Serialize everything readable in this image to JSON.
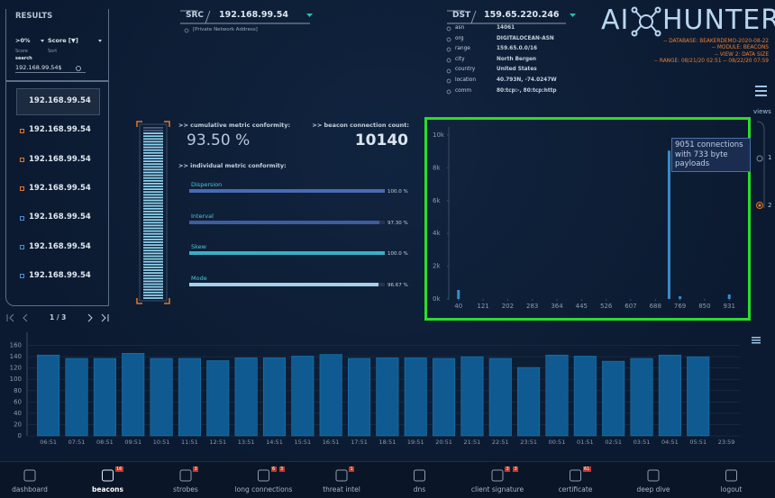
{
  "results": {
    "title": "RESULTS",
    "filter": ">0%",
    "sort": "Score [▼]",
    "filter_label": "Score",
    "sort_label": "Sort",
    "search_label": "search",
    "search": "192.168.99.54$",
    "items": [
      "192.168.99.54",
      "192.168.99.54",
      "192.168.99.54",
      "192.168.99.54",
      "192.168.99.54",
      "192.168.99.54",
      "192.168.99.54"
    ],
    "page": "1 / 3"
  },
  "src": {
    "label": "SRC",
    "ip": "192.168.99.54",
    "note": "[Private Network Address]"
  },
  "dst": {
    "label": "DST",
    "ip": "159.65.220.246",
    "fields": [
      {
        "key": "asn",
        "value": "14061"
      },
      {
        "key": "org",
        "value": "DIGITALOCEAN-ASN"
      },
      {
        "key": "range",
        "value": "159.65.0.0/16"
      },
      {
        "key": "city",
        "value": "North Bergen"
      },
      {
        "key": "country",
        "value": "United States"
      },
      {
        "key": "location",
        "value": "40.793N, -74.0247W"
      },
      {
        "key": "comm",
        "value": "80:tcp:-, 80:tcp:http"
      }
    ]
  },
  "logo": {
    "left": "AI",
    "right": "HUNTER"
  },
  "info": [
    "-- DATABASE: BEAKERDEMO-2020-08-22",
    "-- MODULE: BEACONS",
    "-- VIEW 2: DATA SIZE",
    "-- RANGE: 08/21/20 02:51 -- 08/22/20 07:59"
  ],
  "metrics": {
    "cumulative_label": ">> cumulative metric conformity:",
    "cumulative": "93.50 %",
    "count_label": ">> beacon connection count:",
    "count": "10140",
    "individual_label": ">> individual metric conformity:",
    "items": [
      {
        "name": "Dispersion",
        "value": 100,
        "label": "100.0 %",
        "color": "#4a6bb3"
      },
      {
        "name": "Interval",
        "value": 97.3,
        "label": "97.30 %",
        "color": "#3e5d9f"
      },
      {
        "name": "Skew",
        "value": 100,
        "label": "100.0 %",
        "color": "#3aafc4"
      },
      {
        "name": "Mode",
        "value": 96.67,
        "label": "96.67 %",
        "color": "#a6cfe9"
      }
    ]
  },
  "views": {
    "label": "views",
    "options": [
      "1",
      "2"
    ]
  },
  "nav": [
    {
      "label": "dashboard"
    },
    {
      "label": "beacons",
      "badges": [
        "16"
      ]
    },
    {
      "label": "strobes",
      "badges": [
        "3"
      ]
    },
    {
      "label": "long connections",
      "badges": [
        "6",
        "3"
      ]
    },
    {
      "label": "threat intel",
      "badges": [
        "1"
      ]
    },
    {
      "label": "dns"
    },
    {
      "label": "client signature",
      "badges": [
        "3",
        "3"
      ]
    },
    {
      "label": "certificate",
      "badges": [
        "61"
      ]
    },
    {
      "label": "deep dive"
    },
    {
      "label": "logout"
    }
  ],
  "chart_data": [
    {
      "type": "bar",
      "x": [
        40,
        733,
        769,
        931
      ],
      "values": [
        550,
        9051,
        165,
        275
      ],
      "color": "#3b8bc6",
      "xlim": [
        20,
        960
      ],
      "xticks": [
        40,
        121,
        202,
        283,
        364,
        445,
        526,
        607,
        688,
        769,
        850,
        931
      ],
      "ylim": [
        0,
        10000
      ],
      "yticks": [
        {
          "value": 0,
          "label": "0k"
        },
        {
          "value": 2000,
          "label": "2k"
        },
        {
          "value": 4000,
          "label": "4k"
        },
        {
          "value": 6000,
          "label": "6k"
        },
        {
          "value": 8000,
          "label": "8k"
        },
        {
          "value": 10000,
          "label": "10k"
        }
      ],
      "annotation": "9051 connections with 733 byte payloads"
    },
    {
      "type": "bar",
      "categories": [
        "06:51",
        "07:51",
        "08:51",
        "09:51",
        "10:51",
        "11:51",
        "12:51",
        "13:51",
        "14:51",
        "15:51",
        "16:51",
        "17:51",
        "18:51",
        "19:51",
        "20:51",
        "21:51",
        "22:51",
        "23:51",
        "00:51",
        "01:51",
        "02:51",
        "03:51",
        "04:51",
        "05:51",
        "23:59"
      ],
      "values": [
        143,
        137,
        137,
        146,
        137,
        137,
        133,
        138,
        138,
        141,
        144,
        137,
        138,
        138,
        137,
        140,
        137,
        121,
        143,
        141,
        132,
        137,
        143,
        140,
        null
      ],
      "color": "#0f5b91",
      "ylim": [
        0,
        180
      ],
      "yticks": [
        0,
        20,
        40,
        60,
        80,
        100,
        120,
        140,
        160
      ],
      "grid": true
    }
  ]
}
